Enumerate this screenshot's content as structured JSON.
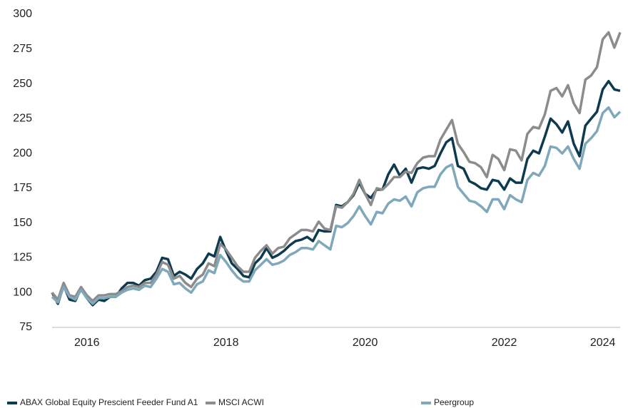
{
  "chart_data": {
    "type": "line",
    "categories": [
      null,
      null,
      null,
      null,
      null,
      null,
      "2016",
      null,
      null,
      null,
      null,
      null,
      null,
      null,
      null,
      null,
      null,
      null,
      null,
      null,
      null,
      null,
      null,
      null,
      null,
      null,
      null,
      null,
      null,
      null,
      "2018",
      null,
      null,
      null,
      null,
      null,
      null,
      null,
      null,
      null,
      null,
      null,
      null,
      null,
      null,
      null,
      null,
      null,
      null,
      null,
      null,
      null,
      null,
      null,
      "2020",
      null,
      null,
      null,
      null,
      null,
      null,
      null,
      null,
      null,
      null,
      null,
      null,
      null,
      null,
      null,
      null,
      null,
      null,
      null,
      null,
      null,
      null,
      null,
      "2022",
      null,
      null,
      null,
      null,
      null,
      null,
      null,
      null,
      null,
      null,
      null,
      null,
      null,
      null,
      null,
      null,
      "2024",
      null,
      null,
      null
    ],
    "series": [
      {
        "name": "ABAX Global Equity Prescient Feeder Fund A1",
        "color": "#0d3a4f",
        "values": [
          100,
          92,
          105,
          95,
          94,
          103,
          96,
          91,
          95,
          94,
          97,
          97,
          103,
          107,
          107,
          105,
          109,
          110,
          115,
          125,
          124,
          112,
          115,
          113,
          110,
          117,
          121,
          128,
          126,
          140,
          130,
          121,
          117,
          112,
          111,
          121,
          125,
          132,
          125,
          127,
          130,
          134,
          137,
          138,
          140,
          137,
          145,
          144,
          144,
          163,
          162,
          165,
          170,
          179,
          171,
          168,
          174,
          174,
          185,
          192,
          184,
          189,
          179,
          189,
          190,
          189,
          191,
          200,
          208,
          211,
          191,
          189,
          180,
          178,
          175,
          174,
          181,
          180,
          174,
          182,
          179,
          179,
          196,
          202,
          200,
          212,
          225,
          221,
          215,
          223,
          207,
          198,
          220,
          225,
          230,
          246,
          252,
          246,
          245
        ]
      },
      {
        "name": "MSCI ACWI",
        "color": "#8c8c8c",
        "values": [
          100,
          95,
          107,
          98,
          97,
          104,
          98,
          94,
          98,
          98,
          99,
          99,
          101,
          104,
          105,
          104,
          107,
          107,
          113,
          122,
          120,
          110,
          112,
          107,
          104,
          110,
          113,
          121,
          119,
          135,
          131,
          125,
          119,
          115,
          115,
          125,
          130,
          134,
          128,
          132,
          133,
          139,
          142,
          145,
          145,
          144,
          151,
          146,
          145,
          162,
          161,
          165,
          171,
          181,
          171,
          163,
          175,
          174,
          178,
          183,
          183,
          187,
          186,
          193,
          197,
          198,
          198,
          210,
          217,
          224,
          207,
          201,
          194,
          193,
          190,
          183,
          199,
          196,
          188,
          203,
          202,
          195,
          214,
          219,
          218,
          228,
          245,
          247,
          241,
          249,
          236,
          229,
          253,
          256,
          262,
          282,
          287,
          276,
          287
        ]
      },
      {
        "name": "Peergroup",
        "color": "#7fa8bb",
        "values": [
          97,
          93,
          104,
          97,
          95,
          102,
          96,
          92,
          96,
          96,
          97,
          97,
          100,
          102,
          103,
          102,
          105,
          104,
          110,
          117,
          115,
          106,
          107,
          103,
          100,
          106,
          108,
          116,
          114,
          127,
          122,
          116,
          111,
          108,
          108,
          116,
          120,
          124,
          120,
          121,
          123,
          127,
          129,
          132,
          132,
          131,
          137,
          134,
          131,
          148,
          147,
          150,
          155,
          162,
          155,
          149,
          158,
          157,
          164,
          167,
          166,
          169,
          162,
          172,
          175,
          176,
          176,
          185,
          190,
          192,
          176,
          171,
          166,
          165,
          162,
          158,
          167,
          167,
          160,
          170,
          167,
          165,
          181,
          186,
          184,
          191,
          205,
          204,
          200,
          205,
          196,
          189,
          207,
          211,
          216,
          229,
          233,
          226,
          230
        ]
      }
    ],
    "ylim": [
      75,
      300
    ],
    "yticks": [
      75,
      100,
      125,
      150,
      175,
      200,
      225,
      250,
      275,
      300
    ],
    "grid": false
  }
}
